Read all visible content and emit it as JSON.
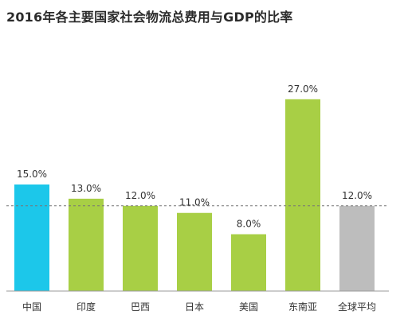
{
  "chart_data": {
    "type": "bar",
    "title": "2016年各主要国家社会物流总费用与GDP的比率",
    "xlabel": "",
    "ylabel": "",
    "categories": [
      "中国",
      "印度",
      "巴西",
      "日本",
      "美国",
      "东南亚",
      "全球平均"
    ],
    "values": [
      15.0,
      13.0,
      12.0,
      11.0,
      8.0,
      27.0,
      12.0
    ],
    "value_labels": [
      "15.0%",
      "13.0%",
      "12.0%",
      "11.0%",
      "8.0%",
      "27.0%",
      "12.0%"
    ],
    "unit": "%",
    "ylim": [
      0,
      30
    ],
    "reference_line": {
      "value": 12.0,
      "style": "dashed"
    },
    "grid": false,
    "legend": "none",
    "bar_colors": [
      "#1cc7ea",
      "#a8cf45",
      "#a8cf45",
      "#a8cf45",
      "#a8cf45",
      "#a8cf45",
      "#bdbdbd"
    ]
  }
}
